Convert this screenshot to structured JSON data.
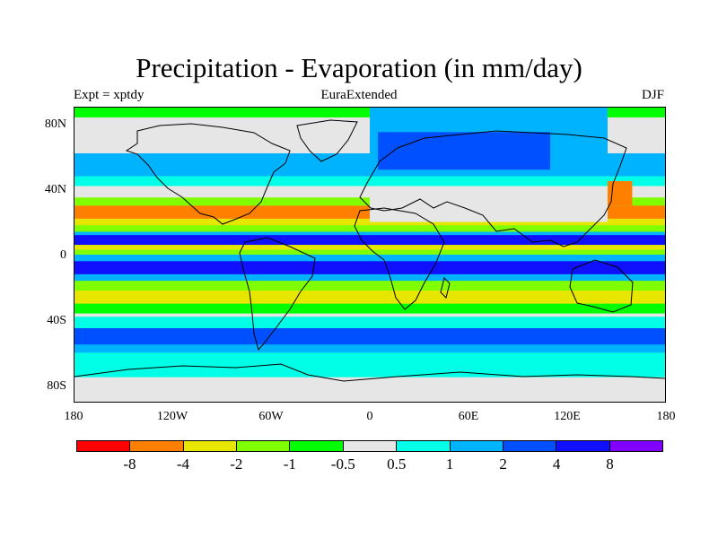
{
  "title": "Precipitation - Evaporation (in mm/day)",
  "left_subtitle": "Expt = xptdy",
  "center_subtitle": "EuraExtended",
  "right_subtitle": "DJF",
  "lat_labels": [
    "80N",
    "40N",
    "0",
    "40S",
    "80S"
  ],
  "lon_labels": [
    "180",
    "120W",
    "60W",
    "0",
    "60E",
    "120E",
    "180"
  ],
  "colorbar": {
    "colors": [
      "#ff0000",
      "#ff8000",
      "#e6e600",
      "#80ff00",
      "#00ff00",
      "#e6e6e6",
      "#00ffe6",
      "#00b3ff",
      "#0050ff",
      "#1010ff",
      "#8000ff"
    ],
    "labels": [
      "-8",
      "-4",
      "-2",
      "-1",
      "-0.5",
      "0.5",
      "1",
      "2",
      "4",
      "8"
    ]
  },
  "chart_data": {
    "type": "heatmap",
    "title": "Precipitation - Evaporation (in mm/day)",
    "variable": "P-E",
    "units": "mm/day",
    "season": "DJF",
    "experiment": "xptdy",
    "region": "EuraExtended",
    "xlim": [
      -180,
      180
    ],
    "ylim": [
      -90,
      90
    ],
    "contour_levels": [
      -8,
      -4,
      -2,
      -1,
      -0.5,
      0.5,
      1,
      2,
      4,
      8
    ],
    "zonal_bands": [
      {
        "lat_range": [
          84,
          90
        ],
        "value": -0.75
      },
      {
        "lat_range": [
          62,
          84
        ],
        "value": 0
      },
      {
        "lat_range": [
          48,
          62
        ],
        "value": 1.5
      },
      {
        "lat_range": [
          42,
          48
        ],
        "value": 0.75
      },
      {
        "lat_range": [
          35,
          42
        ],
        "value": 0
      },
      {
        "lat_range": [
          30,
          35
        ],
        "value": -1.5
      },
      {
        "lat_range": [
          22,
          30
        ],
        "value": -6
      },
      {
        "lat_range": [
          18,
          22
        ],
        "value": -3
      },
      {
        "lat_range": [
          14,
          18
        ],
        "value": -1.5
      },
      {
        "lat_range": [
          12,
          14
        ],
        "value": 1.5
      },
      {
        "lat_range": [
          6,
          12
        ],
        "value": 6
      },
      {
        "lat_range": [
          3,
          6
        ],
        "value": -3
      },
      {
        "lat_range": [
          0,
          3
        ],
        "value": -1.5
      },
      {
        "lat_range": [
          -4,
          0
        ],
        "value": 1.5
      },
      {
        "lat_range": [
          -12,
          -4
        ],
        "value": 6
      },
      {
        "lat_range": [
          -16,
          -12
        ],
        "value": 1.5
      },
      {
        "lat_range": [
          -22,
          -16
        ],
        "value": -1.5
      },
      {
        "lat_range": [
          -30,
          -22
        ],
        "value": -3
      },
      {
        "lat_range": [
          -36,
          -30
        ],
        "value": -0.75
      },
      {
        "lat_range": [
          -38,
          -36
        ],
        "value": 0
      },
      {
        "lat_range": [
          -45,
          -38
        ],
        "value": 0.75
      },
      {
        "lat_range": [
          -55,
          -45
        ],
        "value": 3
      },
      {
        "lat_range": [
          -60,
          -55
        ],
        "value": 1.5
      },
      {
        "lat_range": [
          -75,
          -60
        ],
        "value": 0.75
      },
      {
        "lat_range": [
          -90,
          -75
        ],
        "value": 0
      }
    ],
    "regional_anomalies": [
      {
        "region": "Eurasia box",
        "lon_range": [
          0,
          145
        ],
        "lat_range": [
          48,
          90
        ],
        "value": 1.5
      },
      {
        "region": "Eurasia box core",
        "lon_range": [
          5,
          110
        ],
        "lat_range": [
          52,
          75
        ],
        "value": 3
      },
      {
        "region": "Central Asia",
        "lon_range": [
          0,
          145
        ],
        "lat_range": [
          20,
          40
        ],
        "value": 0
      },
      {
        "region": "NW Pacific",
        "lon_range": [
          145,
          160
        ],
        "lat_range": [
          30,
          45
        ],
        "value": -8
      }
    ]
  }
}
